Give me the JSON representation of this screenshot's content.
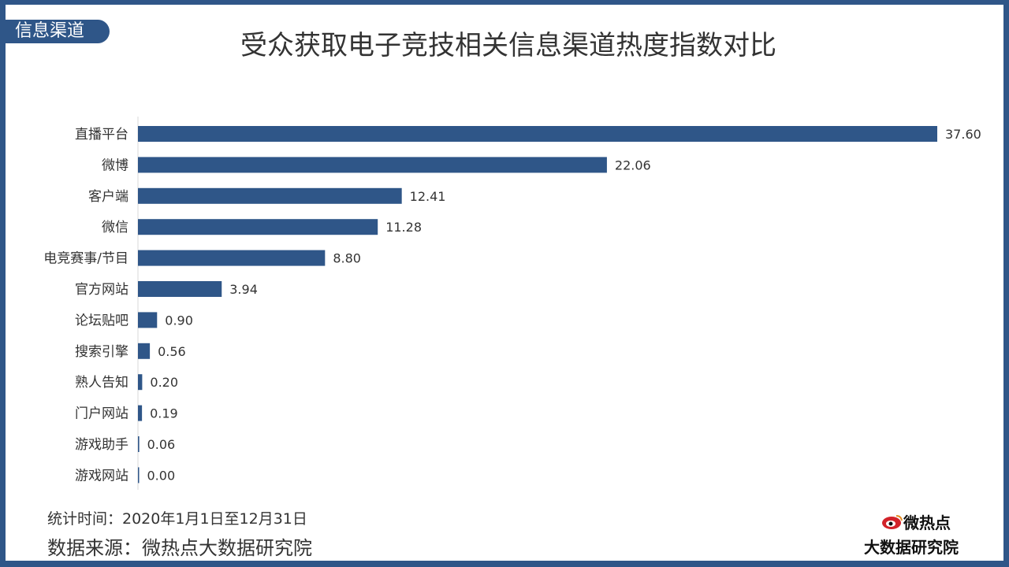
{
  "header": {
    "tag": "信息渠道",
    "title": "受众获取电子竞技相关信息渠道热度指数对比"
  },
  "footer": {
    "time": "统计时间：2020年1月1日至12月31日",
    "source": "数据来源：微热点大数据研究院"
  },
  "logo": {
    "line1": "微热点",
    "line2": "大数据研究院",
    "icon": "weibo-eye-icon"
  },
  "colors": {
    "frame": "#2f5688",
    "bar": "#2f5688",
    "logo_red": "#d2232a"
  },
  "chart_data": {
    "type": "bar",
    "orientation": "horizontal",
    "title": "受众获取电子竞技相关信息渠道热度指数对比",
    "categories": [
      "直播平台",
      "微博",
      "客户端",
      "微信",
      "电竞赛事/节目",
      "官方网站",
      "论坛贴吧",
      "搜索引擎",
      "熟人告知",
      "门户网站",
      "游戏助手",
      "游戏网站"
    ],
    "values": [
      37.6,
      22.06,
      12.41,
      11.28,
      8.8,
      3.94,
      0.9,
      0.56,
      0.2,
      0.19,
      0.06,
      0.0
    ],
    "value_labels": [
      "37.60",
      "22.06",
      "12.41",
      "11.28",
      "8.80",
      "3.94",
      "0.90",
      "0.56",
      "0.20",
      "0.19",
      "0.06",
      "0.00"
    ],
    "xlim": [
      0,
      37.6
    ],
    "grid": false,
    "legend": "none"
  }
}
